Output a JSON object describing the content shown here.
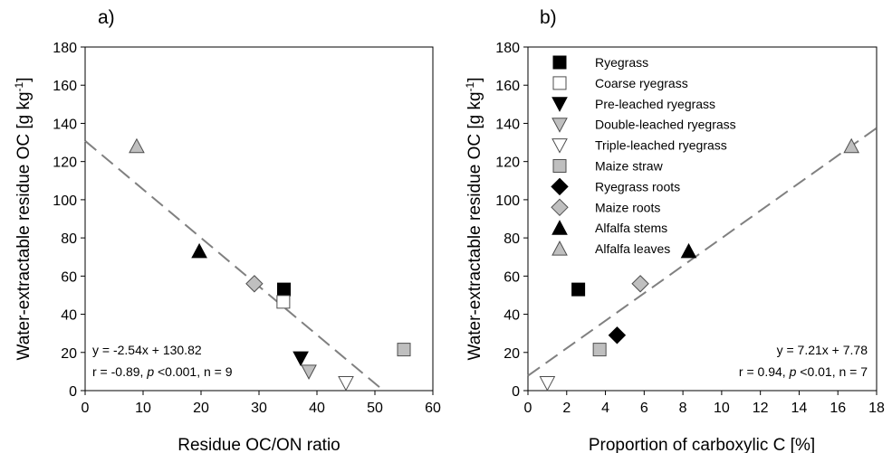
{
  "chart_data": [
    {
      "type": "scatter",
      "panel_label": "a)",
      "xlabel": "Residue OC/ON ratio",
      "ylabel": "Water-extractable residue OC [g kg",
      "ylabel_sup": "-1",
      "ylabel_end": "]",
      "xlim": [
        0,
        60
      ],
      "ylim": [
        0,
        180
      ],
      "xticks": [
        0,
        10,
        20,
        30,
        40,
        50,
        60
      ],
      "yticks": [
        0,
        20,
        40,
        60,
        80,
        100,
        120,
        140,
        160,
        180
      ],
      "grid": false,
      "points": [
        {
          "series": "Ryegrass",
          "x": 34.3,
          "y": 53
        },
        {
          "series": "Coarse ryegrass",
          "x": 34.2,
          "y": 46.5
        },
        {
          "series": "Pre-leached ryegrass",
          "x": 37.2,
          "y": 17
        },
        {
          "series": "Double-leached ryegrass",
          "x": 38.6,
          "y": 10
        },
        {
          "series": "Triple-leached ryegrass",
          "x": 45,
          "y": 4
        },
        {
          "series": "Maize straw",
          "x": 55,
          "y": 21.5
        },
        {
          "series": "Maize roots",
          "x": 29.2,
          "y": 56
        },
        {
          "series": "Alfalfa stems",
          "x": 19.7,
          "y": 73
        },
        {
          "series": "Alfalfa leaves",
          "x": 8.9,
          "y": 128
        }
      ],
      "fit_line": {
        "x": [
          0,
          50.9
        ],
        "y": [
          130.82,
          1.5
        ]
      },
      "annotations": [
        "y = -2.54x + 130.82",
        "r = -0.89, ",
        "p",
        " <0.001, n = 9"
      ]
    },
    {
      "type": "scatter",
      "panel_label": "b)",
      "xlabel": "Proportion of carboxylic C [%]",
      "ylabel": "Water-extractable residue OC [g kg",
      "ylabel_sup": "-1",
      "ylabel_end": "]",
      "xlim": [
        0,
        18
      ],
      "ylim": [
        0,
        180
      ],
      "xticks": [
        0,
        2,
        4,
        6,
        8,
        10,
        12,
        14,
        16,
        18
      ],
      "yticks": [
        0,
        20,
        40,
        60,
        80,
        100,
        120,
        140,
        160,
        180
      ],
      "grid": false,
      "legend_position": "top-left",
      "points": [
        {
          "series": "Ryegrass",
          "x": 2.6,
          "y": 53
        },
        {
          "series": "Triple-leached ryegrass",
          "x": 1,
          "y": 4
        },
        {
          "series": "Maize straw",
          "x": 3.7,
          "y": 21.5
        },
        {
          "series": "Ryegrass roots",
          "x": 4.6,
          "y": 29
        },
        {
          "series": "Maize roots",
          "x": 5.8,
          "y": 56
        },
        {
          "series": "Alfalfa stems",
          "x": 8.3,
          "y": 73
        },
        {
          "series": "Alfalfa leaves",
          "x": 16.7,
          "y": 128
        }
      ],
      "fit_line": {
        "x": [
          0,
          18
        ],
        "y": [
          7.78,
          137.56
        ]
      },
      "annotations": [
        "y = 7.21x + 7.78",
        "r = 0.94, ",
        "p",
        " <0.01, n = 7"
      ]
    }
  ],
  "legend": [
    {
      "name": "Ryegrass",
      "marker": "square",
      "fill": "#000000"
    },
    {
      "name": "Coarse ryegrass",
      "marker": "square",
      "fill": "#ffffff"
    },
    {
      "name": "Pre-leached ryegrass",
      "marker": "triangle-down",
      "fill": "#000000"
    },
    {
      "name": "Double-leached ryegrass",
      "marker": "triangle-down",
      "fill": "#bfbfbf"
    },
    {
      "name": "Triple-leached ryegrass",
      "marker": "triangle-down",
      "fill": "#ffffff"
    },
    {
      "name": "Maize straw",
      "marker": "square",
      "fill": "#bfbfbf"
    },
    {
      "name": "Ryegrass roots",
      "marker": "diamond",
      "fill": "#000000"
    },
    {
      "name": "Maize roots",
      "marker": "diamond",
      "fill": "#bfbfbf"
    },
    {
      "name": "Alfalfa stems",
      "marker": "triangle-up",
      "fill": "#000000"
    },
    {
      "name": "Alfalfa leaves",
      "marker": "triangle-up",
      "fill": "#bfbfbf"
    }
  ],
  "colors": {
    "fit_line": "#808080",
    "axis": "#000000",
    "marker_stroke": "#4d4d4d"
  }
}
